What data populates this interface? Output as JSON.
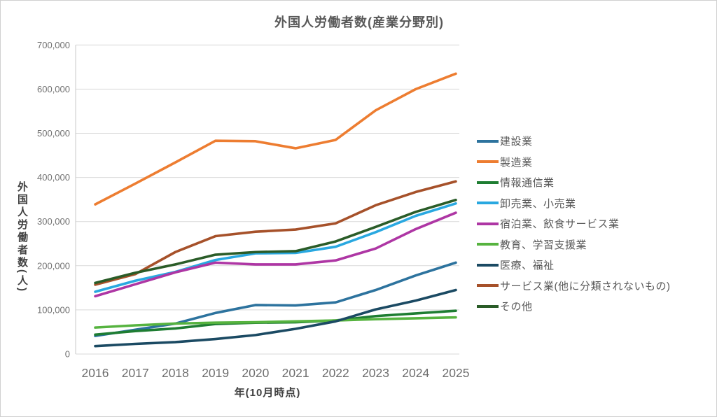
{
  "chart_data": {
    "type": "line",
    "title": "外国人労働者数(産業分野別)",
    "xlabel": "年(10月時点)",
    "ylabel": "外国人労働者数(人)",
    "x": [
      "2016",
      "2017",
      "2018",
      "2019",
      "2020",
      "2021",
      "2022",
      "2023",
      "2024",
      "2025"
    ],
    "ylim": [
      0,
      700000
    ],
    "ytick_step": 100000,
    "ytick_labels": [
      "0",
      "100,000",
      "200,000",
      "300,000",
      "400,000",
      "500,000",
      "600,000",
      "700,000"
    ],
    "grid": true,
    "legend_position": "right",
    "series": [
      {
        "name": "建設業",
        "color": "#2d739e",
        "values": [
          41000,
          55000,
          69000,
          93000,
          111000,
          110000,
          117000,
          145000,
          178000,
          207000
        ]
      },
      {
        "name": "製造業",
        "color": "#ed7d31",
        "values": [
          339000,
          386000,
          434000,
          483000,
          482000,
          466000,
          485000,
          552000,
          600000,
          635000
        ]
      },
      {
        "name": "情報通信業",
        "color": "#1e7d32",
        "values": [
          44000,
          52000,
          58000,
          68000,
          71000,
          72000,
          76000,
          86000,
          92000,
          98000
        ]
      },
      {
        "name": "卸売業、小売業",
        "color": "#29a8e0",
        "values": [
          141000,
          166000,
          186000,
          213000,
          228000,
          229000,
          243000,
          276000,
          313000,
          341000
        ]
      },
      {
        "name": "宿泊業、飲食サービス業",
        "color": "#ae36a4",
        "values": [
          131000,
          158000,
          185000,
          207000,
          203000,
          203000,
          212000,
          239000,
          283000,
          320000
        ]
      },
      {
        "name": "教育、学習支援業",
        "color": "#56b33f",
        "values": [
          60000,
          65000,
          69000,
          71000,
          72000,
          74000,
          76000,
          79000,
          81000,
          83000
        ]
      },
      {
        "name": "医療、福祉",
        "color": "#1b4a63",
        "values": [
          18000,
          23000,
          27000,
          34000,
          43000,
          57000,
          74000,
          101000,
          121000,
          145000
        ]
      },
      {
        "name": "サービス業(他に分類されないもの)",
        "color": "#a6512a",
        "values": [
          157000,
          181000,
          231000,
          267000,
          277000,
          282000,
          296000,
          337000,
          367000,
          391000
        ]
      },
      {
        "name": "その他",
        "color": "#2a5c28",
        "values": [
          161000,
          184000,
          203000,
          225000,
          231000,
          233000,
          255000,
          288000,
          322000,
          349000
        ]
      }
    ]
  },
  "colors": {
    "background": "#ffffff",
    "frame_border": "#d0d0d0",
    "gridline": "#d9d9d9",
    "axis_line": "#c8c8c8",
    "tick_label": "#737373",
    "x_tick_label": "#6e6e6e",
    "title_text": "#595959",
    "axis_title_text": "#404040",
    "legend_text": "#595959"
  }
}
